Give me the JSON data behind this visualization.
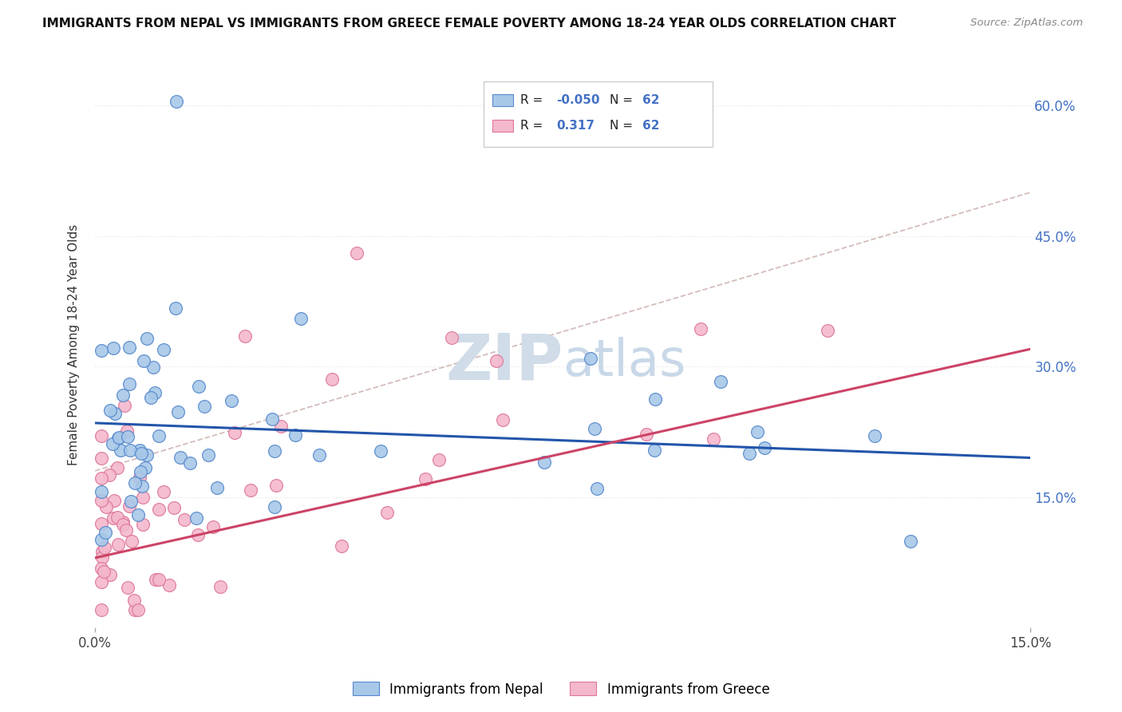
{
  "title": "IMMIGRANTS FROM NEPAL VS IMMIGRANTS FROM GREECE FEMALE POVERTY AMONG 18-24 YEAR OLDS CORRELATION CHART",
  "source": "Source: ZipAtlas.com",
  "ylabel": "Female Poverty Among 18-24 Year Olds",
  "xlim": [
    0.0,
    0.15
  ],
  "ylim": [
    0.0,
    0.65
  ],
  "legend_label_blue": "Immigrants from Nepal",
  "legend_label_pink": "Immigrants from Greece",
  "R_blue": "-0.050",
  "N_blue": "62",
  "R_pink": "0.317",
  "N_pink": "62",
  "color_blue": "#a8c8e8",
  "color_pink": "#f4b8cc",
  "edge_blue": "#5588cc",
  "edge_pink": "#dd7799",
  "line_blue": "#2255aa",
  "line_pink": "#cc4466",
  "line_gray_color": "#ccaaaa",
  "background": "#ffffff",
  "grid_color": "#e8e8e8",
  "watermark_color": "#d0dce8",
  "title_color": "#111111",
  "source_color": "#888888",
  "axis_label_color": "#333333",
  "tick_color_right": "#4472c4",
  "legend_R_color": "#111111",
  "legend_N_color": "#4472c4",
  "legend_val_color": "#4472c4"
}
